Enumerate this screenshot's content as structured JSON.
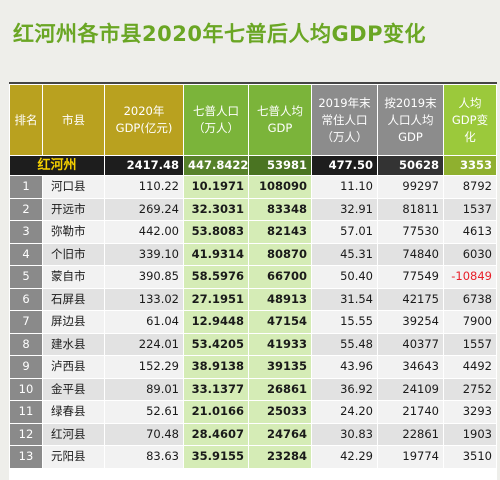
{
  "title": "红河州各市县2020年七普后人均GDP变化",
  "headers": {
    "rank": "排名",
    "city": "市县",
    "gdp": "2020年GDP(亿元)",
    "pop": "七普人口（万人）",
    "pgdp": "七普人均GDP",
    "cpop": "2019年末常住人口（万人）",
    "cgdp": "按2019末人口人均GDP",
    "chg": "人均GDP变化"
  },
  "total": {
    "city": "红河州",
    "gdp": "2417.48",
    "pop": "447.8422",
    "pgdp": "53981",
    "cpop": "477.50",
    "cgdp": "50628",
    "chg": "3353"
  },
  "rows": [
    {
      "rank": "1",
      "city": "河口县",
      "gdp": "110.22",
      "pop": "10.1971",
      "pgdp": "108090",
      "cpop": "11.10",
      "cgdp": "99297",
      "chg": "8792"
    },
    {
      "rank": "2",
      "city": "开远市",
      "gdp": "269.24",
      "pop": "32.3031",
      "pgdp": "83348",
      "cpop": "32.91",
      "cgdp": "81811",
      "chg": "1537"
    },
    {
      "rank": "3",
      "city": "弥勒市",
      "gdp": "442.00",
      "pop": "53.8083",
      "pgdp": "82143",
      "cpop": "57.01",
      "cgdp": "77530",
      "chg": "4613"
    },
    {
      "rank": "4",
      "city": "个旧市",
      "gdp": "339.10",
      "pop": "41.9314",
      "pgdp": "80870",
      "cpop": "45.31",
      "cgdp": "74840",
      "chg": "6030"
    },
    {
      "rank": "5",
      "city": "蒙自市",
      "gdp": "390.85",
      "pop": "58.5976",
      "pgdp": "66700",
      "cpop": "50.40",
      "cgdp": "77549",
      "chg": "-10849"
    },
    {
      "rank": "6",
      "city": "石屏县",
      "gdp": "133.02",
      "pop": "27.1951",
      "pgdp": "48913",
      "cpop": "31.54",
      "cgdp": "42175",
      "chg": "6738"
    },
    {
      "rank": "7",
      "city": "屏边县",
      "gdp": "61.04",
      "pop": "12.9448",
      "pgdp": "47154",
      "cpop": "15.55",
      "cgdp": "39254",
      "chg": "7900"
    },
    {
      "rank": "8",
      "city": "建水县",
      "gdp": "224.01",
      "pop": "53.4205",
      "pgdp": "41933",
      "cpop": "55.48",
      "cgdp": "40377",
      "chg": "1557"
    },
    {
      "rank": "9",
      "city": "泸西县",
      "gdp": "152.29",
      "pop": "38.9138",
      "pgdp": "39135",
      "cpop": "43.96",
      "cgdp": "34643",
      "chg": "4492"
    },
    {
      "rank": "10",
      "city": "金平县",
      "gdp": "89.01",
      "pop": "33.1377",
      "pgdp": "26861",
      "cpop": "36.92",
      "cgdp": "24109",
      "chg": "2752"
    },
    {
      "rank": "11",
      "city": "绿春县",
      "gdp": "52.61",
      "pop": "21.0166",
      "pgdp": "25033",
      "cpop": "24.20",
      "cgdp": "21740",
      "chg": "3293"
    },
    {
      "rank": "12",
      "city": "红河县",
      "gdp": "70.48",
      "pop": "28.4607",
      "pgdp": "24764",
      "cpop": "30.83",
      "cgdp": "22861",
      "chg": "1903"
    },
    {
      "rank": "13",
      "city": "元阳县",
      "gdp": "83.63",
      "pop": "35.9155",
      "pgdp": "23284",
      "cpop": "42.29",
      "cgdp": "19774",
      "chg": "3510"
    }
  ],
  "colors": {
    "title": "#6aa624",
    "header_gold": "#b9a11f",
    "header_green": "#7bb43a",
    "header_gray": "#8c8c8c",
    "negative": "#e8202a"
  }
}
